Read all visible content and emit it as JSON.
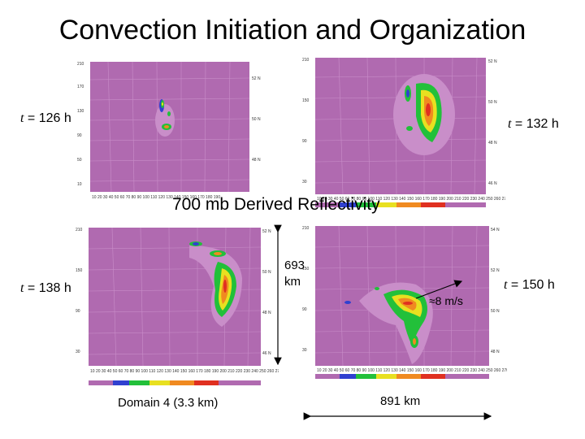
{
  "slide": {
    "title": "Convection Initiation and Organization",
    "center_caption": "700 mb Derived Reflectivity",
    "domain_label": "Domain 4 (3.3 km)",
    "width_label": "891 km",
    "height_value": "693",
    "height_unit": "km",
    "wind_label": "≈8 m/s"
  },
  "panels": [
    {
      "t_prefix": "t",
      "t_value": "= 126 h"
    },
    {
      "t_prefix": "t",
      "t_value": "= 132 h"
    },
    {
      "t_prefix": "t",
      "t_value": "= 138 h"
    },
    {
      "t_prefix": "t",
      "t_value": "= 150 h"
    }
  ],
  "colors": {
    "map_bg": "#b06ab0",
    "grid": "#d9a6d9",
    "light_echo": "#c98ec9",
    "green": "#22c03a",
    "yellow": "#e8e020",
    "orange": "#f08a20",
    "red": "#e03020",
    "blue": "#3040d0"
  }
}
